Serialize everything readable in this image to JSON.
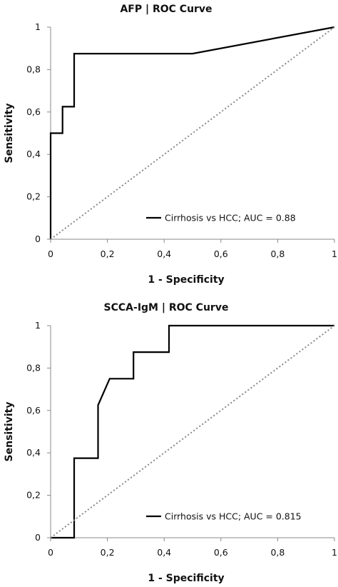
{
  "chart_data": [
    {
      "type": "line",
      "title": "AFP | ROC Curve",
      "xlabel": "1 - Specificity",
      "ylabel": "Sensitivity",
      "xlim": [
        0,
        1
      ],
      "ylim": [
        0,
        1
      ],
      "x_ticks": [
        "0",
        "0,2",
        "0,4",
        "0,6",
        "0,8",
        "1"
      ],
      "y_ticks": [
        "0",
        "0,2",
        "0,4",
        "0,6",
        "0,8",
        "1"
      ],
      "grid": false,
      "legend": "bottom-right",
      "series": [
        {
          "name": "Cirrhosis vs HCC; AUC = 0.88",
          "color": "#000000",
          "x": [
            0,
            0,
            0.042,
            0.042,
            0.083,
            0.083,
            0.5,
            1.0
          ],
          "y": [
            0,
            0.5,
            0.5,
            0.625,
            0.625,
            0.875,
            0.875,
            1.0
          ]
        },
        {
          "name": "",
          "style": "dotted",
          "color": "#888888",
          "x": [
            0,
            1
          ],
          "y": [
            0,
            1
          ]
        }
      ]
    },
    {
      "type": "line",
      "title": "SCCA-IgM | ROC Curve",
      "xlabel": "1 - Specificity",
      "ylabel": "Sensitivity",
      "xlim": [
        0,
        1
      ],
      "ylim": [
        0,
        1
      ],
      "x_ticks": [
        "0",
        "0,2",
        "0,4",
        "0,6",
        "0,8",
        "1"
      ],
      "y_ticks": [
        "0",
        "0,2",
        "0,4",
        "0,6",
        "0,8",
        "1"
      ],
      "grid": false,
      "legend": "bottom-right",
      "series": [
        {
          "name": "Cirrhosis vs HCC; AUC = 0.815",
          "color": "#000000",
          "x": [
            0,
            0.083,
            0.083,
            0.167,
            0.167,
            0.208,
            0.292,
            0.292,
            0.417,
            0.417,
            1.0
          ],
          "y": [
            0,
            0,
            0.375,
            0.375,
            0.625,
            0.75,
            0.75,
            0.875,
            0.875,
            1.0,
            1.0
          ]
        },
        {
          "name": "",
          "style": "dotted",
          "color": "#888888",
          "x": [
            0,
            1
          ],
          "y": [
            0,
            1
          ]
        }
      ]
    }
  ]
}
